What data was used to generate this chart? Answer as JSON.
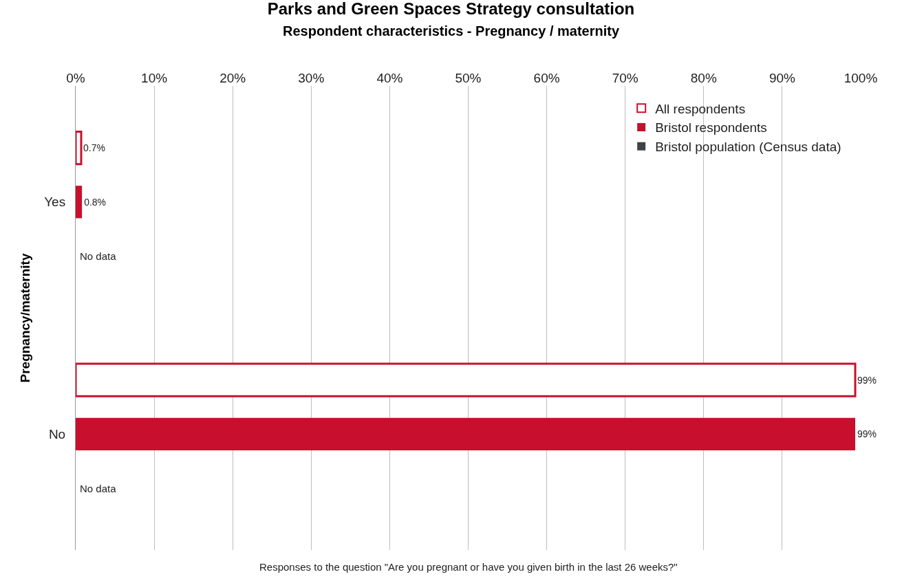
{
  "chart_data": {
    "type": "bar",
    "orientation": "horizontal",
    "title": "Parks and Green Spaces Strategy consultation",
    "subtitle": "Respondent characteristics - Pregnancy / maternity",
    "ylabel": "Pregnancy/maternity",
    "xlabel": "Responses to the question \"Are you pregnant or have you given birth in the last 26 weeks?\"",
    "categories": [
      "Yes",
      "No"
    ],
    "series": [
      {
        "name": "All respondents",
        "color": "#c8102e",
        "values": [
          0.7,
          99.3
        ],
        "value_labels": [
          "0.7%",
          "99%"
        ]
      },
      {
        "name": "Bristol respondents",
        "color": "#c8102e",
        "values": [
          0.8,
          99.3
        ],
        "value_labels": [
          "0.8%",
          "99%"
        ]
      },
      {
        "name": "Bristol population (Census data)",
        "color": "#3f4247",
        "values": [
          null,
          null
        ],
        "value_labels": [
          null,
          null
        ]
      }
    ],
    "annotations": [
      "No data",
      "No data"
    ],
    "xlim": [
      0,
      100
    ],
    "xticks": [
      {
        "value": 0,
        "label": "0%"
      },
      {
        "value": 10,
        "label": "10%"
      },
      {
        "value": 20,
        "label": "20%"
      },
      {
        "value": 30,
        "label": "30%"
      },
      {
        "value": 40,
        "label": "40%"
      },
      {
        "value": 50,
        "label": "50%"
      },
      {
        "value": 60,
        "label": "60%"
      },
      {
        "value": 70,
        "label": "70%"
      },
      {
        "value": 80,
        "label": "80%"
      },
      {
        "value": 90,
        "label": "90%"
      },
      {
        "value": 100,
        "label": "100%"
      }
    ],
    "grid": "x",
    "legend": "top right"
  }
}
